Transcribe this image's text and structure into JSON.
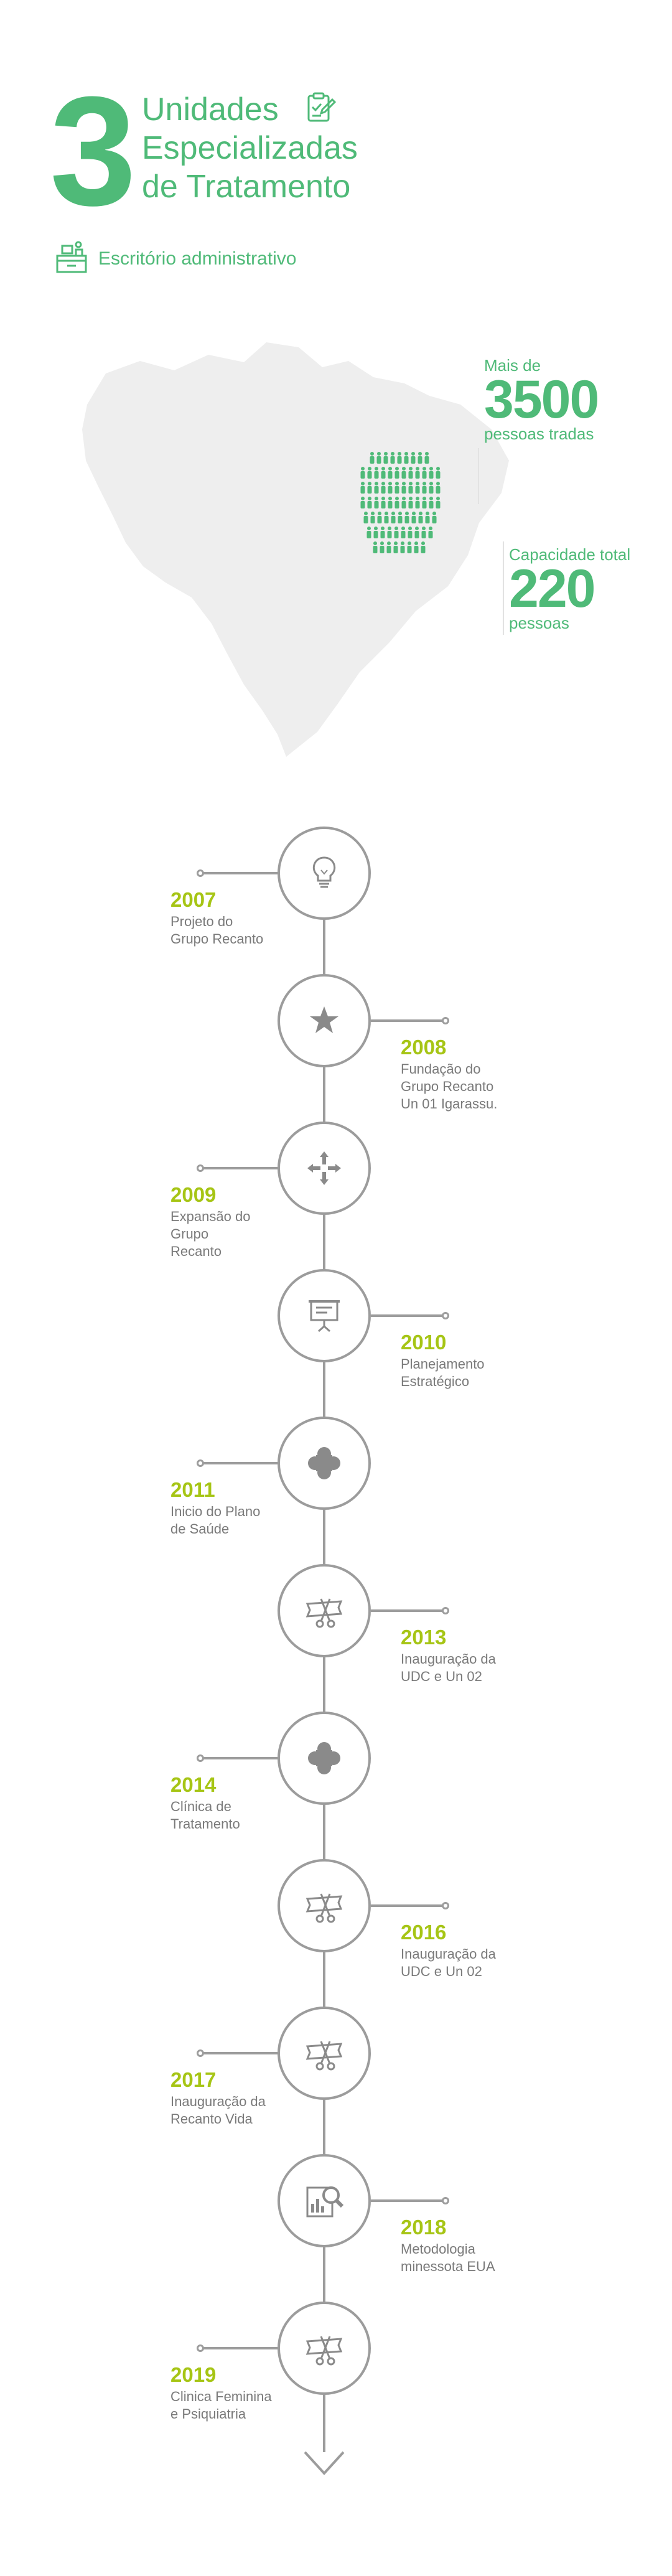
{
  "header": {
    "number": "3",
    "title_lines": [
      "Unidades",
      "Especializadas",
      "de Tratamento"
    ],
    "office_label": "Escritório administrativo"
  },
  "stats": {
    "people": {
      "label": "Mais de",
      "value": "3500",
      "sub": "pessoas tradas"
    },
    "capacity": {
      "label": "Capacidade total",
      "value": "220",
      "sub": "pessoas"
    }
  },
  "colors": {
    "green": "#4fba78",
    "lime": "#a6c515",
    "gray": "#9c9c9c",
    "map": "#eeeeee"
  },
  "timeline": [
    {
      "year": "2007",
      "text": "Projeto do\nGrupo Recanto",
      "icon": "lightbulb-icon",
      "side": "left"
    },
    {
      "year": "2008",
      "text": "Fundação do\nGrupo Recanto\nUn 01 Igarassu.",
      "icon": "star-icon",
      "side": "right"
    },
    {
      "year": "2009",
      "text": "Expansão do\nGrupo\nRecanto",
      "icon": "expand-arrows-icon",
      "side": "left"
    },
    {
      "year": "2010",
      "text": "Planejamento\nEstratégico",
      "icon": "presentation-board-icon",
      "side": "right"
    },
    {
      "year": "2011",
      "text": "Inicio do Plano\nde Saúde",
      "icon": "health-cross-icon",
      "side": "left"
    },
    {
      "year": "2013",
      "text": "Inauguração da\nUDC e Un 02",
      "icon": "ribbon-cutting-icon",
      "side": "right"
    },
    {
      "year": "2014",
      "text": "Clínica de\nTratamento",
      "icon": "health-cross-icon",
      "side": "left"
    },
    {
      "year": "2016",
      "text": "Inauguração da\nUDC e Un 02",
      "icon": "ribbon-cutting-icon",
      "side": "right"
    },
    {
      "year": "2017",
      "text": "Inauguração da\nRecanto Vida",
      "icon": "ribbon-cutting-icon",
      "side": "left"
    },
    {
      "year": "2018",
      "text": "Metodologia\nminessota EUA",
      "icon": "chart-magnifier-icon",
      "side": "right"
    },
    {
      "year": "2019",
      "text": "Clinica Feminina\ne Psiquiatria",
      "icon": "ribbon-cutting-icon",
      "side": "left"
    }
  ]
}
